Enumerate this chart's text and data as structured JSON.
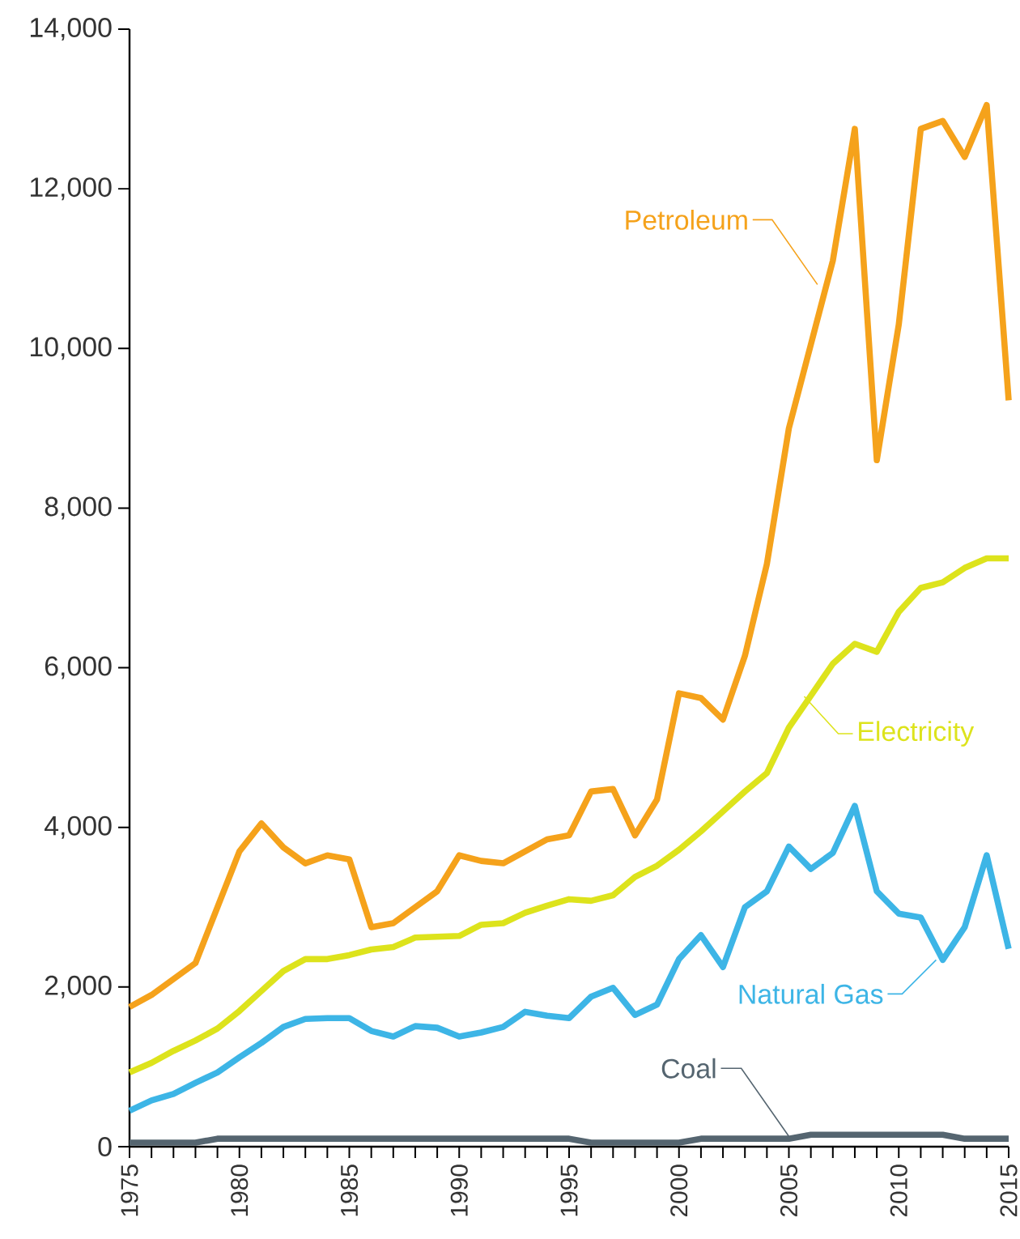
{
  "chart_data": {
    "type": "line",
    "x": [
      1975,
      1976,
      1977,
      1978,
      1979,
      1980,
      1981,
      1982,
      1983,
      1984,
      1985,
      1986,
      1987,
      1988,
      1989,
      1990,
      1991,
      1992,
      1993,
      1994,
      1995,
      1996,
      1997,
      1998,
      1999,
      2000,
      2001,
      2002,
      2003,
      2004,
      2005,
      2006,
      2007,
      2008,
      2009,
      2010,
      2011,
      2012,
      2013,
      2014,
      2015
    ],
    "series": [
      {
        "color": "#f5a21b",
        "values": [
          1750,
          1900,
          2100,
          2300,
          3000,
          3700,
          4050,
          3750,
          3550,
          3650,
          3600,
          2750,
          2800,
          3000,
          3200,
          3650,
          3580,
          3550,
          3700,
          3850,
          3900,
          4450,
          4480,
          3900,
          4350,
          5680,
          5620,
          5350,
          6150,
          7300,
          9000,
          10050,
          11100,
          12750,
          8600,
          10300,
          12750,
          12850,
          12400,
          13050,
          9350
        ]
      },
      {
        "color": "#dde31c",
        "values": [
          930,
          1050,
          1200,
          1330,
          1480,
          1700,
          1950,
          2200,
          2350,
          2350,
          2400,
          2470,
          2500,
          2620,
          2630,
          2640,
          2780,
          2800,
          2930,
          3020,
          3100,
          3080,
          3150,
          3380,
          3520,
          3720,
          3950,
          4200,
          4450,
          4680,
          5250,
          5650,
          6050,
          6300,
          6200,
          6700,
          7000,
          7070,
          7250,
          7370,
          7370
        ]
      },
      {
        "color": "#3db5e6",
        "values": [
          450,
          580,
          660,
          800,
          930,
          1120,
          1300,
          1500,
          1600,
          1610,
          1610,
          1450,
          1380,
          1510,
          1490,
          1380,
          1430,
          1500,
          1690,
          1640,
          1610,
          1880,
          1990,
          1650,
          1780,
          2350,
          2650,
          2250,
          3000,
          3200,
          3760,
          3480,
          3680,
          4270,
          3200,
          2920,
          2870,
          2340,
          2750,
          3650,
          2480
        ]
      },
      {
        "color": "#556570",
        "values": [
          50,
          50,
          50,
          50,
          100,
          100,
          100,
          100,
          100,
          100,
          100,
          100,
          100,
          100,
          100,
          100,
          100,
          100,
          100,
          100,
          100,
          50,
          50,
          50,
          50,
          50,
          100,
          100,
          100,
          100,
          100,
          150,
          150,
          150,
          150,
          150,
          150,
          150,
          100,
          100,
          100
        ]
      }
    ],
    "annotations": [
      {
        "text": "Petroleum",
        "x": 2006.3,
        "y": 10800
      },
      {
        "text": "Electricity",
        "x": 2005.7,
        "y": 5640
      },
      {
        "text": "Natural Gas",
        "x": 2011.7,
        "y": 2340
      },
      {
        "text": "Coal",
        "x": 2005,
        "y": 130
      }
    ],
    "xlim": [
      1975,
      2015
    ],
    "xticks": [
      1975,
      1980,
      1985,
      1990,
      1995,
      2000,
      2005,
      2010,
      2015
    ],
    "ylim": [
      0,
      14000
    ],
    "yticks": [
      {
        "value": 0,
        "label": "0"
      },
      {
        "value": 2000,
        "label": "2,000"
      },
      {
        "value": 4000,
        "label": "4,000"
      },
      {
        "value": 6000,
        "label": "6,000"
      },
      {
        "value": 8000,
        "label": "8,000"
      },
      {
        "value": 10000,
        "label": "10,000"
      },
      {
        "value": 12000,
        "label": "12,000"
      },
      {
        "value": 14000,
        "label": "14,000"
      }
    ],
    "grid": false,
    "marker": "none",
    "line_style": "solid"
  }
}
